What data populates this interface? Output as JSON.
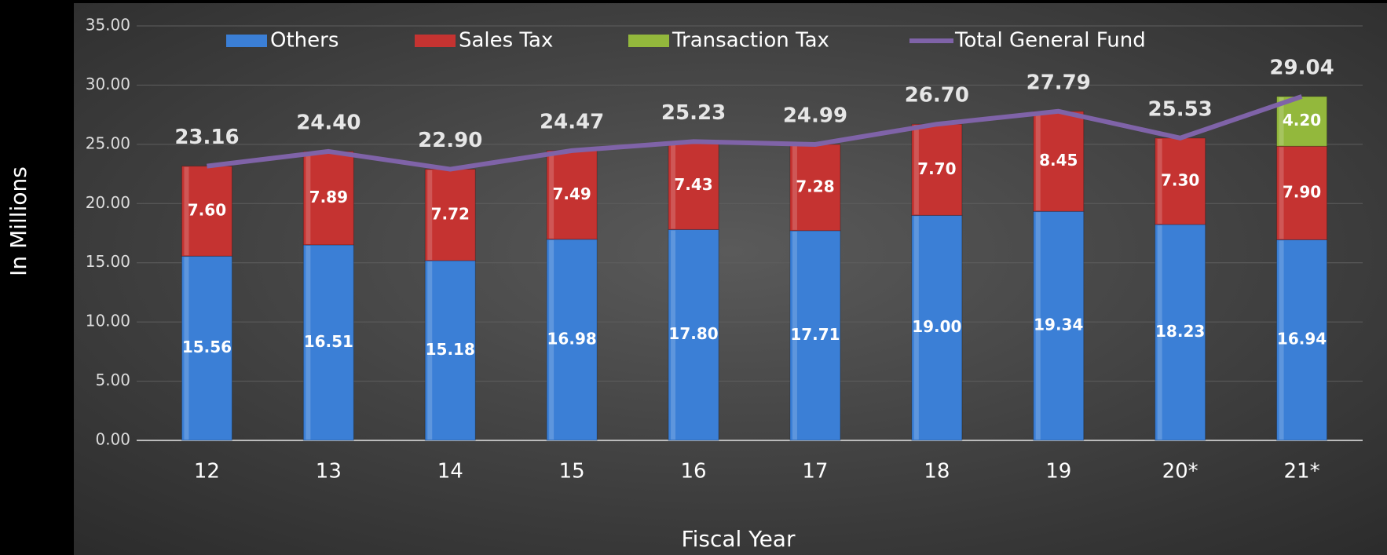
{
  "chart_data": {
    "type": "bar-line",
    "y_label": "In Millions",
    "x_label": "Fiscal Year",
    "categories": [
      "12",
      "13",
      "14",
      "15",
      "16",
      "17",
      "18",
      "19",
      "20*",
      "21*"
    ],
    "series": [
      {
        "name": "Others",
        "color": "#3b7fd6",
        "values": [
          15.56,
          16.51,
          15.18,
          16.98,
          17.8,
          17.71,
          19.0,
          19.34,
          18.23,
          16.94
        ],
        "value_labels": [
          "15.56",
          "16.51",
          "15.18",
          "16.98",
          "17.80",
          "17.71",
          "19.00",
          "19.34",
          "18.23",
          "16.94"
        ]
      },
      {
        "name": "Sales Tax",
        "color": "#c53331",
        "values": [
          7.6,
          7.89,
          7.72,
          7.49,
          7.43,
          7.28,
          7.7,
          8.45,
          7.3,
          7.9
        ],
        "value_labels": [
          "7.60",
          "7.89",
          "7.72",
          "7.49",
          "7.43",
          "7.28",
          "7.70",
          "8.45",
          "7.30",
          "7.90"
        ]
      },
      {
        "name": "Transaction Tax",
        "color": "#93b83c",
        "values": [
          null,
          null,
          null,
          null,
          null,
          null,
          null,
          null,
          null,
          4.2
        ],
        "value_labels": [
          null,
          null,
          null,
          null,
          null,
          null,
          null,
          null,
          null,
          "4.20"
        ]
      },
      {
        "name": "Total General Fund",
        "color": "#7f63a8",
        "kind": "line",
        "values": [
          23.16,
          24.4,
          22.9,
          24.47,
          25.23,
          24.99,
          26.7,
          27.79,
          25.53,
          29.04
        ],
        "value_labels": [
          "23.16",
          "24.40",
          "22.90",
          "24.47",
          "25.23",
          "24.99",
          "26.70",
          "27.79",
          "25.53",
          "29.04"
        ]
      }
    ],
    "ylim": [
      0,
      35
    ],
    "yticks": [
      {
        "value": 0,
        "label": "0.00"
      },
      {
        "value": 5,
        "label": "5.00"
      },
      {
        "value": 10,
        "label": "10.00"
      },
      {
        "value": 15,
        "label": "15.00"
      },
      {
        "value": 20,
        "label": "20.00"
      },
      {
        "value": 25,
        "label": "25.00"
      },
      {
        "value": 30,
        "label": "30.00"
      },
      {
        "value": 35,
        "label": "35.00"
      }
    ],
    "grid": true,
    "legend": "top"
  }
}
